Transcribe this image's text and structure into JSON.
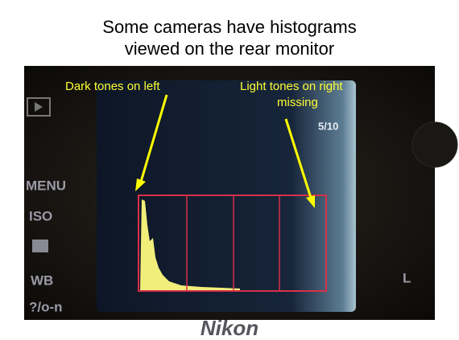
{
  "slide": {
    "title": [
      "Some cameras have histograms",
      "viewed on the rear monitor"
    ],
    "annotations": {
      "left": "Dark tones on left",
      "right": [
        "Light tones on right",
        "missing"
      ]
    },
    "screen": {
      "counter": "5/10"
    },
    "camera_labels": [
      "MENU",
      "ISO",
      "WB",
      "?/o-n",
      "L",
      "Nikon"
    ]
  }
}
